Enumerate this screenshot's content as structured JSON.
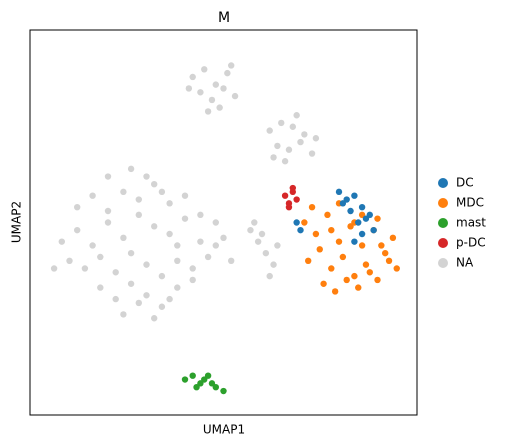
{
  "chart_data": {
    "type": "scatter",
    "title": "M",
    "x_label": "UMAP1",
    "y_label": "UMAP2",
    "xlim": [
      0,
      100
    ],
    "ylim": [
      0,
      100
    ],
    "xticks": [],
    "yticks": [],
    "grid": false,
    "legend": "right",
    "series": [
      {
        "name": "DC",
        "color": "#1f77b4",
        "x": [
          80,
          82,
          84,
          86,
          88,
          83,
          85,
          87,
          89,
          81,
          86,
          84,
          69,
          70
        ],
        "y": [
          58,
          56,
          57,
          54,
          52,
          53,
          50,
          51,
          48,
          55,
          47,
          45,
          50,
          48
        ]
      },
      {
        "name": "MDC",
        "color": "#ff7f0e",
        "x": [
          71,
          74,
          77,
          80,
          83,
          86,
          89,
          92,
          94,
          72,
          75,
          78,
          81,
          84,
          87,
          90,
          93,
          76,
          79,
          82,
          85,
          88,
          91,
          73,
          80,
          86,
          78,
          84,
          90,
          95
        ],
        "y": [
          50,
          47,
          52,
          45,
          49,
          44,
          48,
          42,
          46,
          40,
          43,
          38,
          41,
          36,
          39,
          35,
          40,
          34,
          32,
          35,
          33,
          37,
          44,
          54,
          55,
          52,
          48,
          50,
          51,
          38
        ]
      },
      {
        "name": "mast",
        "color": "#2ca02c",
        "x": [
          40,
          42,
          44,
          46,
          48,
          50,
          43,
          45,
          47
        ],
        "y": [
          9,
          10,
          8,
          10,
          7,
          6,
          7,
          9,
          8
        ]
      },
      {
        "name": "p-DC",
        "color": "#d62728",
        "x": [
          66,
          67,
          68,
          69,
          67,
          68
        ],
        "y": [
          57,
          55,
          58,
          56,
          54,
          59
        ]
      },
      {
        "name": "NA",
        "color": "#d3d3d3",
        "x": [
          8,
          12,
          16,
          20,
          24,
          28,
          32,
          36,
          40,
          44,
          48,
          10,
          14,
          18,
          22,
          26,
          30,
          34,
          38,
          42,
          46,
          50,
          12,
          16,
          20,
          24,
          28,
          32,
          36,
          40,
          44,
          48,
          18,
          22,
          26,
          30,
          34,
          38,
          42,
          24,
          28,
          32,
          36,
          30,
          34,
          20,
          26,
          52,
          6,
          38,
          42,
          45,
          48,
          51,
          44,
          47,
          50,
          53,
          46,
          49,
          41,
          52,
          62,
          65,
          68,
          71,
          74,
          64,
          67,
          70,
          73,
          66,
          69,
          63,
          57,
          59,
          61,
          63,
          58,
          62,
          64,
          60
        ],
        "y": [
          45,
          48,
          44,
          50,
          46,
          52,
          49,
          47,
          51,
          45,
          44,
          40,
          38,
          41,
          37,
          42,
          39,
          36,
          40,
          38,
          41,
          46,
          54,
          57,
          53,
          58,
          56,
          60,
          55,
          57,
          52,
          50,
          33,
          30,
          34,
          31,
          28,
          33,
          35,
          26,
          29,
          25,
          30,
          62,
          58,
          62,
          64,
          40,
          38,
          44,
          88,
          90,
          86,
          89,
          84,
          82,
          85,
          83,
          79,
          80,
          85,
          91,
          74,
          76,
          75,
          73,
          72,
          70,
          69,
          71,
          68,
          66,
          78,
          67,
          48,
          45,
          42,
          39,
          50,
          36,
          44,
          47
        ]
      }
    ]
  }
}
